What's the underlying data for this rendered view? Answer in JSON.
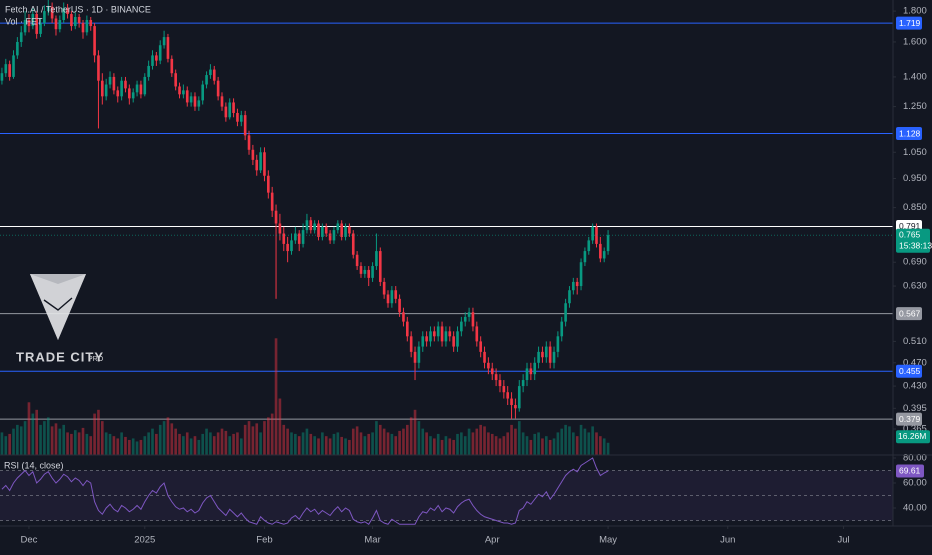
{
  "chart_data": {
    "type": "candlestick",
    "title": "Fetch.AI / TetherUS · 1D · BINANCE",
    "volume_title": "Vol · FET",
    "rsi_title": "RSI (14, close)",
    "countdown": "15:38:13",
    "log_scale": true,
    "up_color": "#089981",
    "down_color": "#f23645",
    "rsi_color": "#7e57c2",
    "ylim": [
      0.346,
      1.878
    ],
    "yticks": [
      {
        "value": 1.8,
        "label": "1.800"
      },
      {
        "value": 1.6,
        "label": "1.600"
      },
      {
        "value": 1.4,
        "label": "1.400"
      },
      {
        "value": 1.25,
        "label": "1.250"
      },
      {
        "value": 1.05,
        "label": "1.050"
      },
      {
        "value": 0.95,
        "label": "0.950"
      },
      {
        "value": 0.85,
        "label": "0.850"
      },
      {
        "value": 0.69,
        "label": "0.690"
      },
      {
        "value": 0.63,
        "label": "0.630"
      },
      {
        "value": 0.51,
        "label": "0.510"
      },
      {
        "value": 0.47,
        "label": "0.470"
      },
      {
        "value": 0.43,
        "label": "0.430"
      },
      {
        "value": 0.395,
        "label": "0.395"
      },
      {
        "value": 0.365,
        "label": "0.365"
      }
    ],
    "xlim": [
      -0.5,
      230.8
    ],
    "xticks": [
      {
        "value": 7,
        "label": "Dec"
      },
      {
        "value": 37,
        "label": "2025"
      },
      {
        "value": 68,
        "label": "Feb"
      },
      {
        "value": 96,
        "label": "Mar"
      },
      {
        "value": 127,
        "label": "Apr"
      },
      {
        "value": 157,
        "label": "May"
      },
      {
        "value": 188,
        "label": "Jun"
      },
      {
        "value": 218,
        "label": "Jul"
      }
    ],
    "levels": [
      {
        "value": 1.719,
        "color": "#2962ff"
      },
      {
        "value": 1.128,
        "color": "#2962ff"
      },
      {
        "value": 0.791,
        "color": "#ffffff"
      },
      {
        "value": 0.567,
        "color": "#9598a1"
      },
      {
        "value": 0.455,
        "color": "#2962ff"
      },
      {
        "value": 0.379,
        "color": "#9598a1"
      }
    ],
    "candles": [
      [
        1.38,
        1.45,
        1.36,
        1.42
      ],
      [
        1.42,
        1.5,
        1.4,
        1.47
      ],
      [
        1.47,
        1.49,
        1.38,
        1.4
      ],
      [
        1.4,
        1.55,
        1.39,
        1.52
      ],
      [
        1.52,
        1.63,
        1.5,
        1.6
      ],
      [
        1.6,
        1.7,
        1.57,
        1.66
      ],
      [
        1.66,
        1.8,
        1.64,
        1.74
      ],
      [
        1.74,
        1.78,
        1.66,
        1.7
      ],
      [
        1.7,
        1.82,
        1.68,
        1.78
      ],
      [
        1.78,
        1.8,
        1.62,
        1.65
      ],
      [
        1.65,
        1.75,
        1.63,
        1.72
      ],
      [
        1.72,
        1.84,
        1.7,
        1.8
      ],
      [
        1.8,
        1.88,
        1.77,
        1.83
      ],
      [
        1.83,
        1.86,
        1.72,
        1.75
      ],
      [
        1.75,
        1.77,
        1.64,
        1.68
      ],
      [
        1.68,
        1.77,
        1.66,
        1.74
      ],
      [
        1.74,
        1.86,
        1.72,
        1.82
      ],
      [
        1.82,
        1.85,
        1.75,
        1.78
      ],
      [
        1.78,
        1.8,
        1.67,
        1.7
      ],
      [
        1.7,
        1.79,
        1.68,
        1.76
      ],
      [
        1.76,
        1.78,
        1.69,
        1.72
      ],
      [
        1.72,
        1.74,
        1.62,
        1.66
      ],
      [
        1.66,
        1.77,
        1.64,
        1.74
      ],
      [
        1.74,
        1.76,
        1.67,
        1.7
      ],
      [
        1.7,
        1.72,
        1.48,
        1.52
      ],
      [
        1.52,
        1.55,
        1.15,
        1.38
      ],
      [
        1.38,
        1.42,
        1.26,
        1.3
      ],
      [
        1.3,
        1.39,
        1.28,
        1.36
      ],
      [
        1.36,
        1.43,
        1.34,
        1.4
      ],
      [
        1.4,
        1.42,
        1.31,
        1.33
      ],
      [
        1.33,
        1.35,
        1.27,
        1.3
      ],
      [
        1.3,
        1.4,
        1.28,
        1.38
      ],
      [
        1.38,
        1.4,
        1.32,
        1.34
      ],
      [
        1.34,
        1.36,
        1.26,
        1.29
      ],
      [
        1.29,
        1.34,
        1.27,
        1.32
      ],
      [
        1.32,
        1.38,
        1.3,
        1.36
      ],
      [
        1.36,
        1.38,
        1.29,
        1.31
      ],
      [
        1.31,
        1.42,
        1.3,
        1.4
      ],
      [
        1.4,
        1.49,
        1.38,
        1.46
      ],
      [
        1.46,
        1.55,
        1.44,
        1.52
      ],
      [
        1.52,
        1.54,
        1.46,
        1.49
      ],
      [
        1.49,
        1.61,
        1.47,
        1.58
      ],
      [
        1.58,
        1.67,
        1.56,
        1.63
      ],
      [
        1.63,
        1.65,
        1.48,
        1.5
      ],
      [
        1.5,
        1.52,
        1.4,
        1.42
      ],
      [
        1.42,
        1.44,
        1.33,
        1.35
      ],
      [
        1.35,
        1.37,
        1.29,
        1.31
      ],
      [
        1.31,
        1.36,
        1.29,
        1.33
      ],
      [
        1.33,
        1.35,
        1.25,
        1.27
      ],
      [
        1.27,
        1.32,
        1.25,
        1.3
      ],
      [
        1.3,
        1.32,
        1.23,
        1.25
      ],
      [
        1.25,
        1.3,
        1.23,
        1.28
      ],
      [
        1.28,
        1.38,
        1.26,
        1.36
      ],
      [
        1.36,
        1.43,
        1.34,
        1.41
      ],
      [
        1.41,
        1.47,
        1.39,
        1.44
      ],
      [
        1.44,
        1.46,
        1.36,
        1.38
      ],
      [
        1.38,
        1.4,
        1.28,
        1.3
      ],
      [
        1.3,
        1.32,
        1.23,
        1.25
      ],
      [
        1.25,
        1.27,
        1.18,
        1.2
      ],
      [
        1.2,
        1.29,
        1.19,
        1.27
      ],
      [
        1.27,
        1.29,
        1.2,
        1.22
      ],
      [
        1.22,
        1.24,
        1.16,
        1.18
      ],
      [
        1.18,
        1.23,
        1.16,
        1.21
      ],
      [
        1.21,
        1.23,
        1.1,
        1.12
      ],
      [
        1.12,
        1.14,
        1.04,
        1.06
      ],
      [
        1.06,
        1.08,
        1.0,
        1.02
      ],
      [
        1.02,
        1.04,
        0.96,
        0.98
      ],
      [
        0.98,
        1.07,
        0.97,
        1.05
      ],
      [
        1.05,
        1.07,
        0.94,
        0.96
      ],
      [
        0.96,
        0.98,
        0.88,
        0.9
      ],
      [
        0.9,
        0.92,
        0.82,
        0.84
      ],
      [
        0.84,
        0.86,
        0.6,
        0.8
      ],
      [
        0.8,
        0.83,
        0.75,
        0.77
      ],
      [
        0.77,
        0.79,
        0.72,
        0.74
      ],
      [
        0.74,
        0.76,
        0.69,
        0.72
      ],
      [
        0.72,
        0.77,
        0.71,
        0.75
      ],
      [
        0.75,
        0.79,
        0.74,
        0.77
      ],
      [
        0.77,
        0.78,
        0.72,
        0.74
      ],
      [
        0.74,
        0.8,
        0.73,
        0.78
      ],
      [
        0.78,
        0.83,
        0.77,
        0.81
      ],
      [
        0.81,
        0.82,
        0.77,
        0.78
      ],
      [
        0.78,
        0.81,
        0.77,
        0.8
      ],
      [
        0.8,
        0.81,
        0.75,
        0.76
      ],
      [
        0.76,
        0.8,
        0.75,
        0.79
      ],
      [
        0.79,
        0.8,
        0.76,
        0.77
      ],
      [
        0.77,
        0.78,
        0.74,
        0.75
      ],
      [
        0.75,
        0.79,
        0.74,
        0.78
      ],
      [
        0.78,
        0.81,
        0.77,
        0.8
      ],
      [
        0.8,
        0.81,
        0.75,
        0.76
      ],
      [
        0.76,
        0.8,
        0.75,
        0.79
      ],
      [
        0.79,
        0.8,
        0.76,
        0.77
      ],
      [
        0.77,
        0.78,
        0.7,
        0.71
      ],
      [
        0.71,
        0.72,
        0.67,
        0.68
      ],
      [
        0.68,
        0.69,
        0.65,
        0.66
      ],
      [
        0.66,
        0.68,
        0.65,
        0.67
      ],
      [
        0.67,
        0.68,
        0.63,
        0.65
      ],
      [
        0.65,
        0.69,
        0.64,
        0.68
      ],
      [
        0.68,
        0.77,
        0.67,
        0.72
      ],
      [
        0.72,
        0.73,
        0.63,
        0.64
      ],
      [
        0.64,
        0.65,
        0.6,
        0.61
      ],
      [
        0.61,
        0.62,
        0.58,
        0.59
      ],
      [
        0.59,
        0.63,
        0.58,
        0.62
      ],
      [
        0.62,
        0.63,
        0.59,
        0.6
      ],
      [
        0.6,
        0.61,
        0.56,
        0.57
      ],
      [
        0.57,
        0.58,
        0.54,
        0.55
      ],
      [
        0.55,
        0.56,
        0.51,
        0.52
      ],
      [
        0.52,
        0.53,
        0.48,
        0.49
      ],
      [
        0.49,
        0.5,
        0.44,
        0.47
      ],
      [
        0.47,
        0.51,
        0.46,
        0.5
      ],
      [
        0.5,
        0.53,
        0.49,
        0.52
      ],
      [
        0.52,
        0.53,
        0.5,
        0.51
      ],
      [
        0.51,
        0.54,
        0.5,
        0.53
      ],
      [
        0.53,
        0.54,
        0.51,
        0.52
      ],
      [
        0.52,
        0.55,
        0.51,
        0.54
      ],
      [
        0.54,
        0.55,
        0.5,
        0.51
      ],
      [
        0.51,
        0.54,
        0.5,
        0.53
      ],
      [
        0.53,
        0.54,
        0.51,
        0.52
      ],
      [
        0.52,
        0.53,
        0.49,
        0.5
      ],
      [
        0.5,
        0.54,
        0.49,
        0.53
      ],
      [
        0.53,
        0.56,
        0.52,
        0.55
      ],
      [
        0.55,
        0.57,
        0.54,
        0.56
      ],
      [
        0.56,
        0.58,
        0.55,
        0.57
      ],
      [
        0.57,
        0.58,
        0.53,
        0.54
      ],
      [
        0.54,
        0.55,
        0.5,
        0.51
      ],
      [
        0.51,
        0.52,
        0.48,
        0.49
      ],
      [
        0.49,
        0.5,
        0.46,
        0.47
      ],
      [
        0.47,
        0.48,
        0.45,
        0.46
      ],
      [
        0.46,
        0.47,
        0.44,
        0.45
      ],
      [
        0.45,
        0.46,
        0.43,
        0.44
      ],
      [
        0.44,
        0.45,
        0.42,
        0.43
      ],
      [
        0.43,
        0.44,
        0.41,
        0.42
      ],
      [
        0.42,
        0.43,
        0.4,
        0.41
      ],
      [
        0.41,
        0.42,
        0.379,
        0.4
      ],
      [
        0.4,
        0.41,
        0.38,
        0.395
      ],
      [
        0.395,
        0.44,
        0.39,
        0.43
      ],
      [
        0.43,
        0.45,
        0.42,
        0.44
      ],
      [
        0.44,
        0.47,
        0.43,
        0.46
      ],
      [
        0.46,
        0.47,
        0.44,
        0.45
      ],
      [
        0.45,
        0.48,
        0.44,
        0.47
      ],
      [
        0.47,
        0.5,
        0.46,
        0.49
      ],
      [
        0.49,
        0.5,
        0.47,
        0.48
      ],
      [
        0.48,
        0.51,
        0.47,
        0.5
      ],
      [
        0.5,
        0.51,
        0.46,
        0.47
      ],
      [
        0.47,
        0.5,
        0.46,
        0.49
      ],
      [
        0.49,
        0.53,
        0.48,
        0.52
      ],
      [
        0.52,
        0.56,
        0.51,
        0.55
      ],
      [
        0.55,
        0.6,
        0.54,
        0.59
      ],
      [
        0.59,
        0.63,
        0.58,
        0.62
      ],
      [
        0.62,
        0.65,
        0.61,
        0.64
      ],
      [
        0.64,
        0.65,
        0.61,
        0.63
      ],
      [
        0.63,
        0.7,
        0.62,
        0.69
      ],
      [
        0.69,
        0.73,
        0.68,
        0.72
      ],
      [
        0.72,
        0.76,
        0.71,
        0.75
      ],
      [
        0.75,
        0.8,
        0.74,
        0.79
      ],
      [
        0.79,
        0.8,
        0.73,
        0.74
      ],
      [
        0.74,
        0.76,
        0.69,
        0.7
      ],
      [
        0.7,
        0.73,
        0.69,
        0.72
      ],
      [
        0.72,
        0.78,
        0.71,
        0.765
      ]
    ],
    "vlim": [
      0,
      166
    ],
    "volume": [
      30,
      25,
      28,
      35,
      40,
      38,
      45,
      70,
      55,
      60,
      40,
      45,
      50,
      38,
      42,
      35,
      40,
      30,
      28,
      33,
      30,
      36,
      28,
      25,
      55,
      60,
      45,
      30,
      28,
      25,
      22,
      30,
      24,
      20,
      22,
      18,
      20,
      25,
      30,
      35,
      28,
      40,
      45,
      50,
      42,
      35,
      28,
      25,
      30,
      22,
      25,
      20,
      28,
      35,
      30,
      25,
      30,
      35,
      32,
      25,
      28,
      30,
      22,
      40,
      45,
      38,
      42,
      30,
      45,
      50,
      55,
      155,
      75,
      40,
      35,
      30,
      28,
      25,
      30,
      35,
      28,
      25,
      22,
      30,
      25,
      22,
      28,
      30,
      24,
      22,
      20,
      35,
      38,
      30,
      25,
      28,
      30,
      45,
      40,
      35,
      30,
      28,
      25,
      32,
      35,
      40,
      50,
      60,
      45,
      35,
      30,
      25,
      22,
      28,
      20,
      25,
      22,
      20,
      28,
      30,
      25,
      35,
      30,
      35,
      40,
      38,
      30,
      28,
      25,
      22,
      25,
      30,
      40,
      35,
      45,
      30,
      25,
      20,
      28,
      30,
      22,
      25,
      20,
      22,
      30,
      35,
      40,
      38,
      30,
      25,
      40,
      35,
      30,
      38,
      30,
      25,
      22,
      16.26
    ],
    "volume_label": "16.26M",
    "rsi_ylim": [
      26.4,
      82.4
    ],
    "rsi_yticks": [
      {
        "value": 80,
        "label": "80.00"
      },
      {
        "value": 60,
        "label": "60.00"
      },
      {
        "value": 40,
        "label": "40.00"
      }
    ],
    "rsi_levels": [
      70,
      50,
      30
    ],
    "rsi": [
      55,
      58,
      54,
      60,
      64,
      67,
      70,
      66,
      69,
      60,
      63,
      67,
      69,
      64,
      60,
      63,
      67,
      65,
      61,
      64,
      62,
      58,
      62,
      60,
      45,
      38,
      35,
      40,
      43,
      39,
      37,
      42,
      40,
      37,
      39,
      42,
      39,
      45,
      50,
      54,
      52,
      57,
      60,
      50,
      45,
      41,
      39,
      40,
      37,
      39,
      36,
      38,
      44,
      48,
      50,
      45,
      40,
      37,
      34,
      39,
      36,
      33,
      36,
      32,
      29,
      28,
      27,
      33,
      30,
      28,
      27,
      29,
      28,
      27,
      28,
      32,
      34,
      31,
      36,
      40,
      37,
      39,
      35,
      38,
      36,
      34,
      38,
      41,
      37,
      40,
      38,
      31,
      29,
      28,
      29,
      27,
      32,
      38,
      30,
      28,
      27,
      31,
      29,
      27,
      27,
      27,
      27,
      27,
      33,
      37,
      36,
      40,
      38,
      42,
      37,
      40,
      39,
      36,
      41,
      44,
      46,
      47,
      42,
      38,
      35,
      33,
      32,
      31,
      30,
      29,
      28,
      28,
      27,
      28,
      38,
      40,
      45,
      43,
      47,
      51,
      49,
      53,
      47,
      51,
      56,
      61,
      66,
      69,
      71,
      69,
      74,
      76,
      78,
      80,
      72,
      66,
      68,
      69.61
    ]
  },
  "watermark": {
    "name": "TRADE CITY",
    "suffix": "PRO"
  }
}
